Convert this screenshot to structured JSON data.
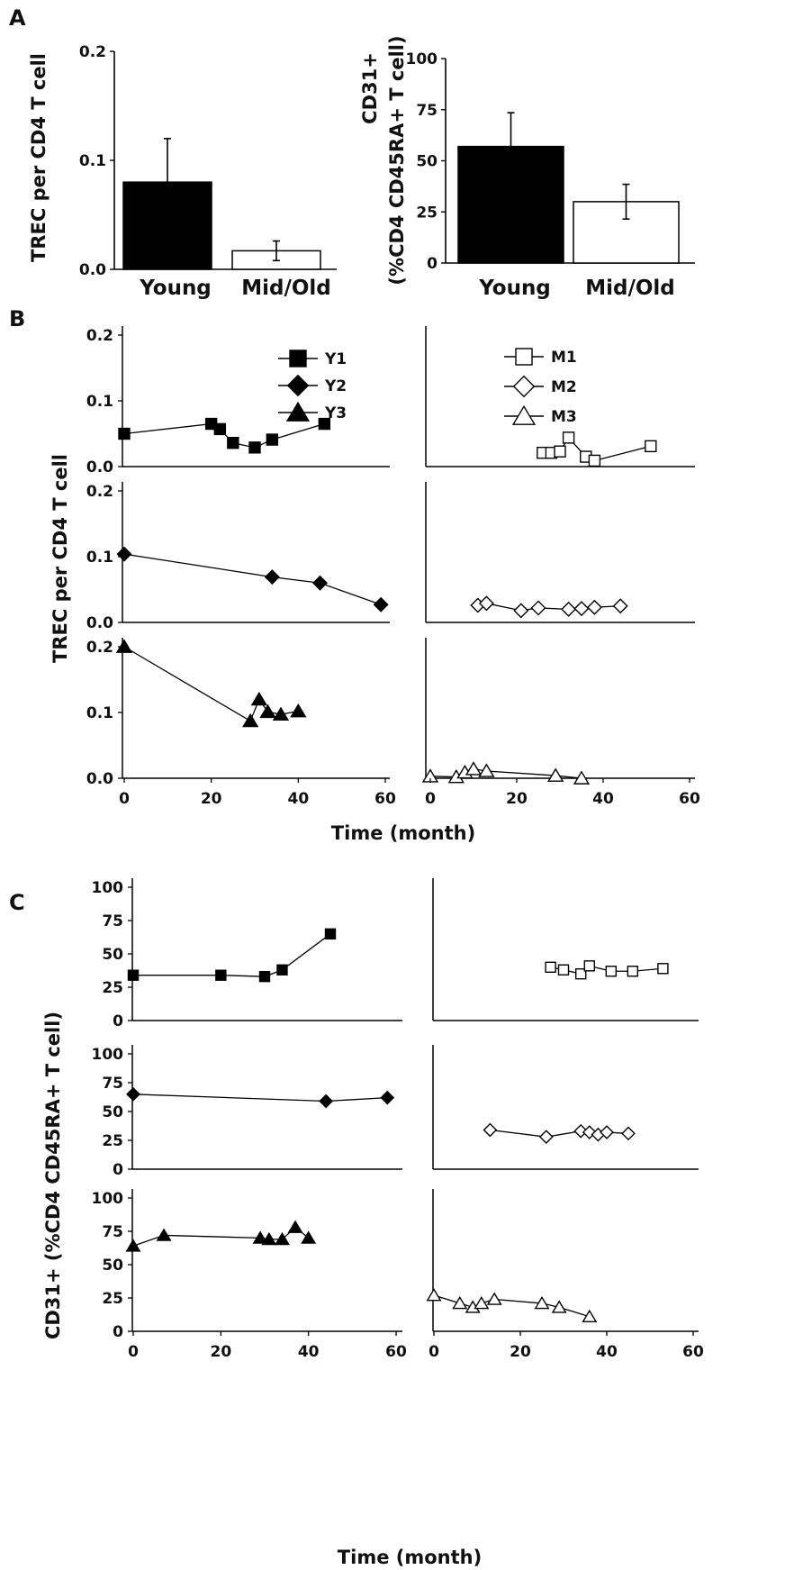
{
  "panels": {
    "a": "A",
    "b": "B",
    "c": "C"
  },
  "axis_titles": {
    "trec_a": "TREC per CD4 T cell",
    "cd31_a_line1": "CD31+",
    "cd31_a_line2": "(%CD4 CD45RA+ T cell)",
    "trec_b": "TREC per CD4 T cell",
    "time_b": "Time (month)",
    "cd31_c": "CD31+ (%CD4 CD45RA+ T cell)",
    "time_c": "Time (month)"
  },
  "chart_data": [
    {
      "id": "A-left",
      "type": "bar",
      "title": "",
      "categories": [
        "Young",
        "Mid/Old"
      ],
      "values": [
        0.08,
        0.017
      ],
      "errors": [
        0.04,
        0.009
      ],
      "ylim": [
        0,
        0.2
      ],
      "yticks": [
        "0.0",
        "0.1",
        "0.2"
      ],
      "ylabel": "TREC per CD4 T cell",
      "xlabel": "",
      "bar_colors": [
        "#000000",
        "#ffffff"
      ]
    },
    {
      "id": "A-right",
      "type": "bar",
      "title": "",
      "categories": [
        "Young",
        "Mid/Old"
      ],
      "values": [
        57,
        30
      ],
      "errors": [
        16.5,
        8.5
      ],
      "ylim": [
        0,
        100
      ],
      "yticks": [
        "0",
        "25",
        "50",
        "75",
        "100"
      ],
      "ylabel": "CD31+ (%CD4 CD45RA+ T cell)",
      "xlabel": "",
      "bar_colors": [
        "#000000",
        "#ffffff"
      ]
    },
    {
      "id": "B-left",
      "type": "line",
      "xlabel": "Time (month)",
      "ylabel": "TREC per CD4 T cell",
      "xlim": [
        0,
        60
      ],
      "xticks": [
        "0",
        "20",
        "40",
        "60"
      ],
      "ylim": [
        0,
        0.2
      ],
      "yticks": [
        "0.0",
        "0.1",
        "0.2"
      ],
      "legend": {
        "position": "top-right",
        "entries": [
          "Y1",
          "Y2",
          "Y3"
        ]
      },
      "series": [
        {
          "name": "Y1",
          "marker": "square",
          "fill": "#000000",
          "x": [
            0,
            20,
            22,
            25,
            30,
            34,
            46
          ],
          "y": [
            0.05,
            0.065,
            0.057,
            0.036,
            0.029,
            0.041,
            0.065
          ]
        },
        {
          "name": "Y2",
          "marker": "diamond",
          "fill": "#000000",
          "x": [
            0,
            34,
            45,
            59
          ],
          "y": [
            0.104,
            0.069,
            0.06,
            0.027
          ]
        },
        {
          "name": "Y3",
          "marker": "triangle",
          "fill": "#000000",
          "x": [
            0,
            29,
            31,
            33,
            36,
            40
          ],
          "y": [
            0.2,
            0.087,
            0.12,
            0.101,
            0.097,
            0.102
          ]
        }
      ]
    },
    {
      "id": "B-right",
      "type": "line",
      "xlabel": "Time (month)",
      "ylabel": "",
      "xlim": [
        0,
        60
      ],
      "xticks": [
        "0",
        "20",
        "40",
        "60"
      ],
      "ylim": [
        0,
        0.2
      ],
      "yticks": [],
      "legend": {
        "position": "top-right",
        "entries": [
          "M1",
          "M2",
          "M3"
        ]
      },
      "series": [
        {
          "name": "M1",
          "marker": "square",
          "fill": "#ffffff",
          "x": [
            26,
            28,
            30,
            32,
            36,
            38,
            51
          ],
          "y": [
            0.021,
            0.021,
            0.023,
            0.044,
            0.015,
            0.009,
            0.031
          ]
        },
        {
          "name": "M2",
          "marker": "diamond",
          "fill": "#ffffff",
          "x": [
            11,
            13,
            21,
            25,
            32,
            35,
            38,
            44
          ],
          "y": [
            0.026,
            0.029,
            0.018,
            0.022,
            0.02,
            0.021,
            0.023,
            0.025
          ]
        },
        {
          "name": "M3",
          "marker": "triangle",
          "fill": "#ffffff",
          "x": [
            0,
            6,
            8,
            10,
            13,
            29,
            35
          ],
          "y": [
            0.003,
            0.002,
            0.009,
            0.014,
            0.011,
            0.004,
            0.0
          ]
        }
      ]
    },
    {
      "id": "C-left",
      "type": "line",
      "xlabel": "Time (month)",
      "ylabel": "CD31+ (%CD4 CD45RA+ T cell)",
      "xlim": [
        0,
        60
      ],
      "xticks": [
        "0",
        "20",
        "40",
        "60"
      ],
      "ylim": [
        0,
        100
      ],
      "yticks": [
        "0",
        "25",
        "50",
        "75",
        "100"
      ],
      "series": [
        {
          "name": "Y1",
          "marker": "square",
          "fill": "#000000",
          "x": [
            0,
            20,
            30,
            34,
            45
          ],
          "y": [
            34,
            34,
            33,
            38,
            65
          ]
        },
        {
          "name": "Y2",
          "marker": "diamond",
          "fill": "#000000",
          "x": [
            0,
            44,
            58
          ],
          "y": [
            65,
            59,
            62
          ]
        },
        {
          "name": "Y3",
          "marker": "triangle",
          "fill": "#000000",
          "x": [
            0,
            7,
            29,
            31,
            34,
            37,
            40
          ],
          "y": [
            64,
            72,
            70,
            69,
            69,
            78,
            70
          ]
        }
      ]
    },
    {
      "id": "C-right",
      "type": "line",
      "xlabel": "Time (month)",
      "ylabel": "",
      "xlim": [
        0,
        60
      ],
      "xticks": [
        "0",
        "20",
        "40",
        "60"
      ],
      "ylim": [
        0,
        100
      ],
      "yticks": [],
      "series": [
        {
          "name": "M1",
          "marker": "square",
          "fill": "#ffffff",
          "x": [
            27,
            30,
            34,
            36,
            41,
            46,
            53
          ],
          "y": [
            40,
            38,
            35,
            41,
            37,
            37,
            39
          ]
        },
        {
          "name": "M2",
          "marker": "diamond",
          "fill": "#ffffff",
          "x": [
            13,
            26,
            34,
            36,
            38,
            40,
            45
          ],
          "y": [
            34,
            28,
            33,
            32,
            30,
            32,
            31
          ]
        },
        {
          "name": "M3",
          "marker": "triangle",
          "fill": "#ffffff",
          "x": [
            0,
            6,
            9,
            11,
            14,
            25,
            29,
            36
          ],
          "y": [
            27,
            21,
            18,
            21,
            24,
            21,
            18,
            11
          ]
        }
      ]
    }
  ]
}
